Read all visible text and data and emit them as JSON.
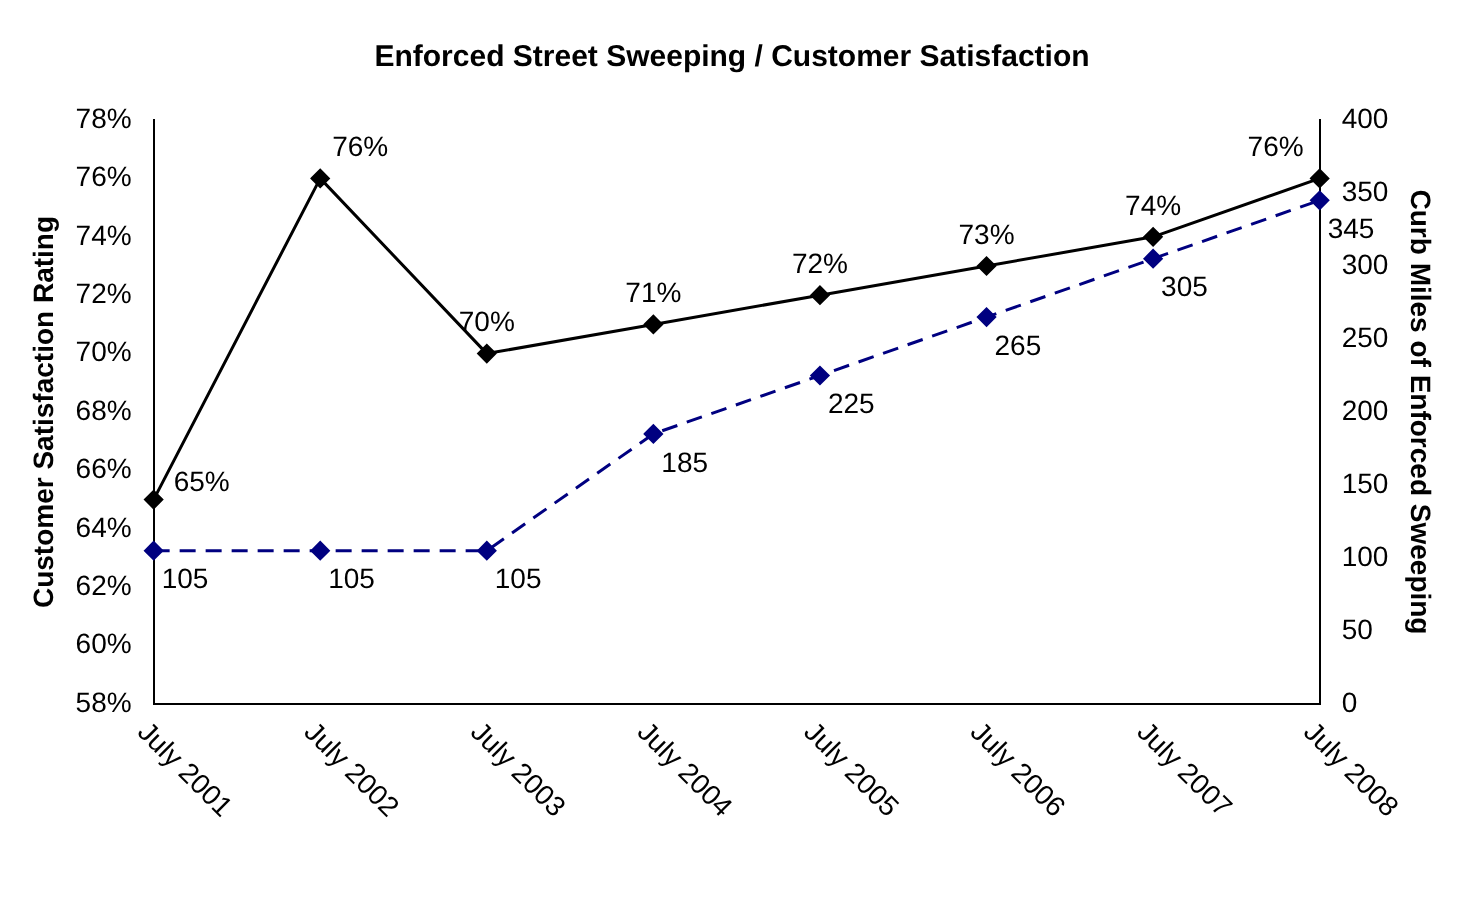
{
  "chart_data": {
    "type": "line",
    "title": "Enforced Street Sweeping / Customer Satisfaction",
    "ylabel": "Customer Satisfaction Rating",
    "y2label": "Curb Miles of Enforced Sweeping",
    "categories": [
      "July 2001",
      "July 2002",
      "July 2003",
      "July 2004",
      "July 2005",
      "July 2006",
      "July 2007",
      "July 2008"
    ],
    "series": [
      {
        "color": "#000000",
        "values": [
          65,
          76,
          70,
          71,
          72,
          73,
          74,
          76
        ],
        "value_labels": [
          "65%",
          "76%",
          "70%",
          "71%",
          "72%",
          "73%",
          "74%",
          "76%"
        ],
        "marker": "diamond",
        "line_style": "solid"
      },
      {
        "color": "#000080",
        "values": [
          105,
          105,
          105,
          185,
          225,
          265,
          305,
          345
        ],
        "value_labels": [
          "105",
          "105",
          "105",
          "185",
          "225",
          "265",
          "305",
          "345"
        ],
        "axis": "y2",
        "marker": "diamond",
        "line_style": "dashed"
      }
    ],
    "ylim": [
      58,
      78
    ],
    "yticks": [
      {
        "value": 58,
        "label": "58%"
      },
      {
        "value": 60,
        "label": "60%"
      },
      {
        "value": 62,
        "label": "62%"
      },
      {
        "value": 64,
        "label": "64%"
      },
      {
        "value": 66,
        "label": "66%"
      },
      {
        "value": 68,
        "label": "68%"
      },
      {
        "value": 70,
        "label": "70%"
      },
      {
        "value": 72,
        "label": "72%"
      },
      {
        "value": 74,
        "label": "74%"
      },
      {
        "value": 76,
        "label": "76%"
      },
      {
        "value": 78,
        "label": "78%"
      }
    ],
    "y2lim": [
      0,
      400
    ],
    "y2ticks": [
      0,
      50,
      100,
      150,
      200,
      250,
      300,
      350,
      400
    ],
    "grid": false,
    "legend": false
  }
}
